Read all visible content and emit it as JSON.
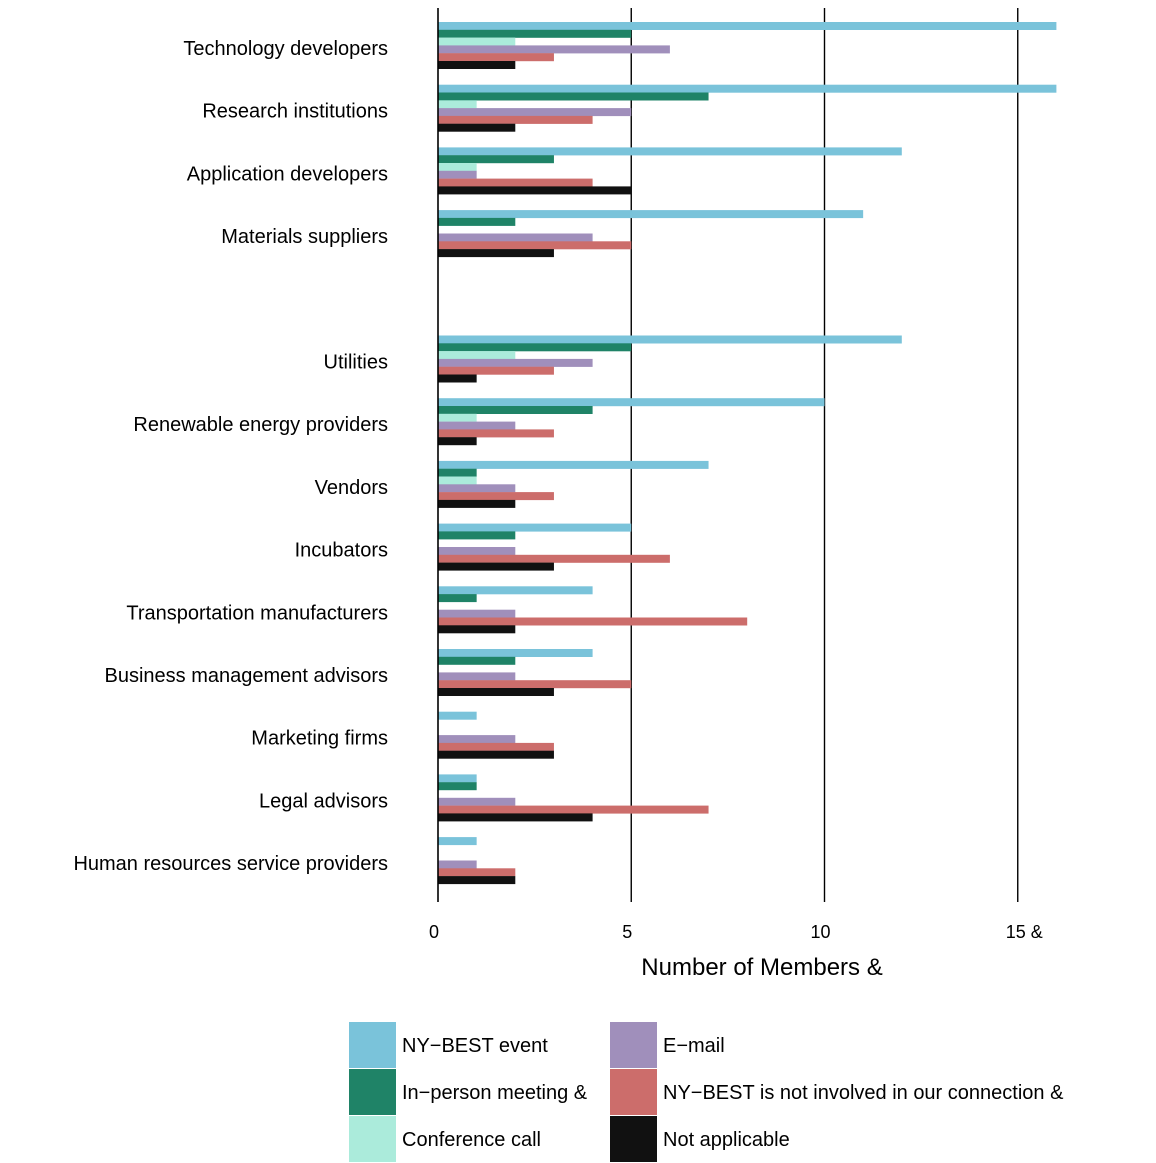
{
  "chart_data": {
    "type": "bar",
    "orientation": "horizontal",
    "xlabel": "Number of Members &",
    "xlim": [
      0,
      16
    ],
    "xticks": [
      "0",
      "5",
      "10",
      "15 &"
    ],
    "grid": true,
    "legend_position": "bottom",
    "categories": [
      "Technology developers",
      "Research institutions",
      "Application developers",
      "Materials suppliers",
      "",
      "Utilities",
      "Renewable energy providers",
      "Vendors",
      "Incubators",
      "Transportation manufacturers",
      "Business management advisors",
      "Marketing firms",
      "Legal advisors",
      "Human resources service providers"
    ],
    "series": [
      {
        "name": "NY−BEST event",
        "color": "#7ac3da",
        "values": [
          16,
          16,
          12,
          11,
          0,
          12,
          10,
          7,
          5,
          4,
          4,
          1,
          1,
          1
        ]
      },
      {
        "name": "In−person meeting &",
        "color": "#1f8367",
        "values": [
          5,
          7,
          3,
          2,
          0,
          5,
          4,
          1,
          2,
          1,
          2,
          0,
          1,
          0
        ]
      },
      {
        "name": "Conference call",
        "color": "#abebdb",
        "values": [
          2,
          1,
          1,
          0,
          0,
          2,
          1,
          1,
          0,
          0,
          0,
          0,
          0,
          0
        ]
      },
      {
        "name": "E−mail",
        "color": "#a08fbb",
        "values": [
          6,
          5,
          1,
          4,
          0,
          4,
          2,
          2,
          2,
          2,
          2,
          2,
          2,
          1
        ]
      },
      {
        "name": "NY−BEST is not involved in our connection &",
        "color": "#cc6d6b",
        "values": [
          3,
          4,
          4,
          5,
          0,
          3,
          3,
          3,
          6,
          8,
          5,
          3,
          7,
          2
        ]
      },
      {
        "name": "Not applicable",
        "color": "#111111",
        "values": [
          2,
          2,
          5,
          3,
          0,
          1,
          1,
          2,
          3,
          2,
          3,
          3,
          4,
          2
        ]
      }
    ]
  }
}
